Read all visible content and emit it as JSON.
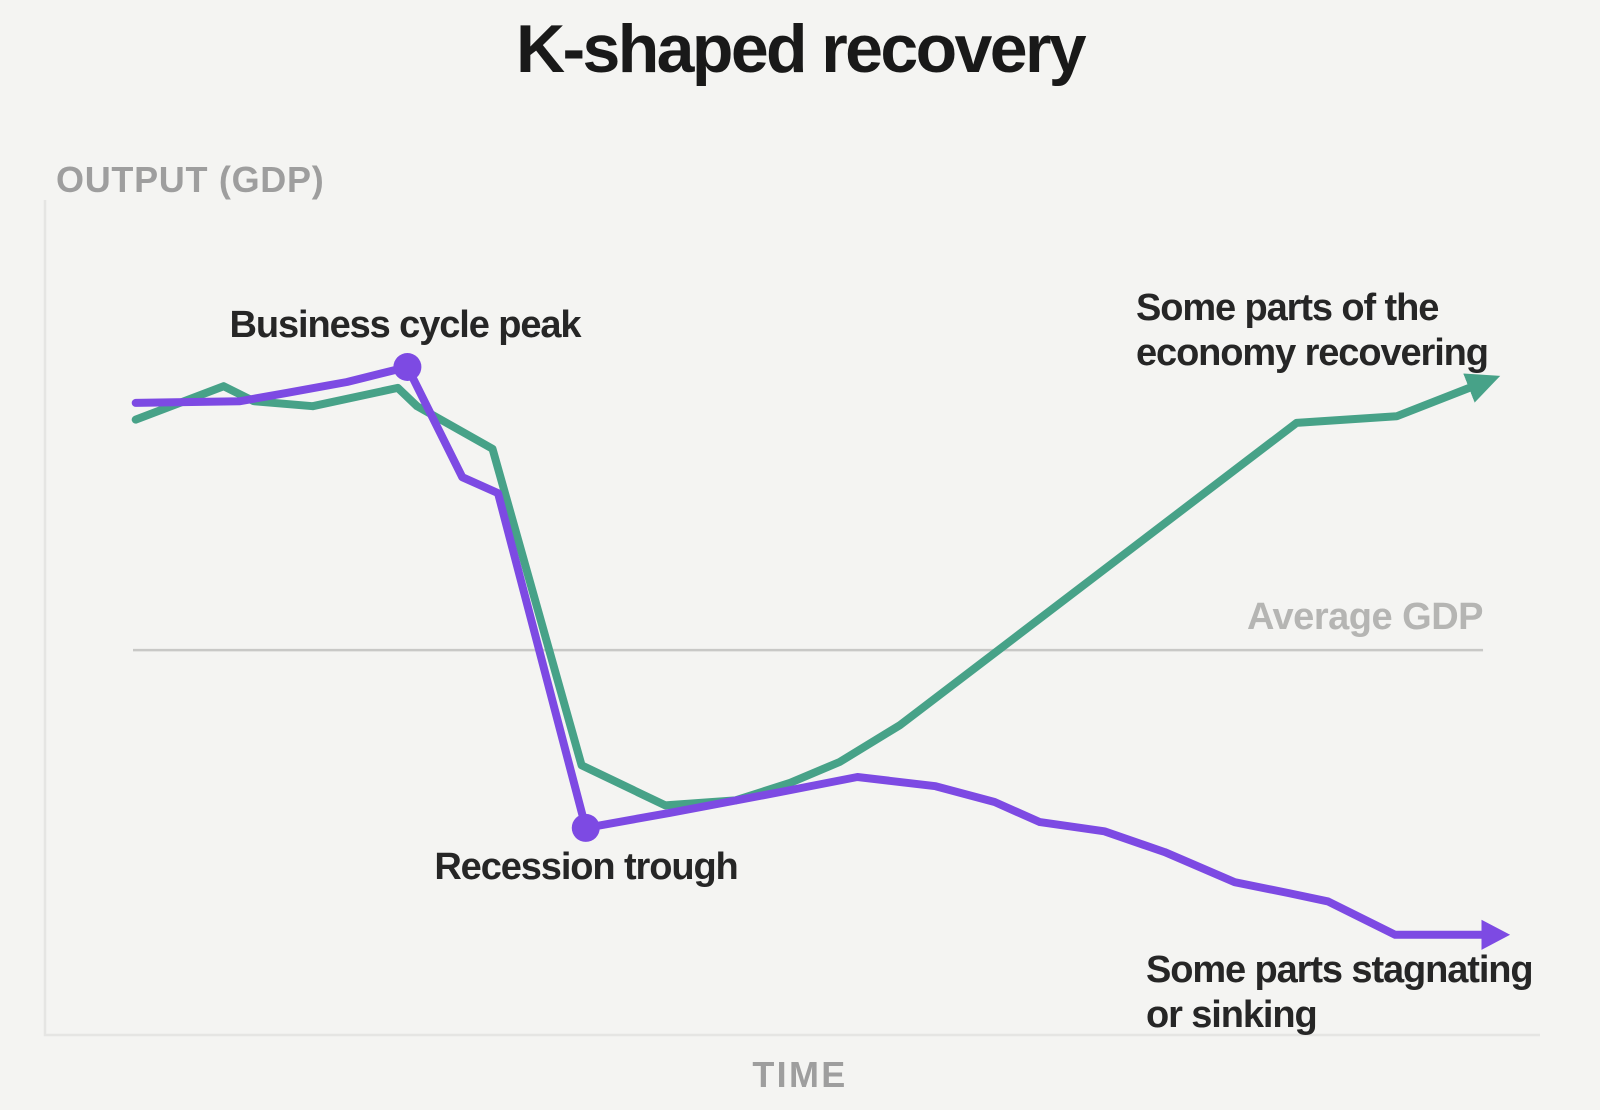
{
  "title": "K-shaped recovery",
  "axes": {
    "y_label": "OUTPUT (GDP)",
    "x_label": "TIME"
  },
  "annotations": {
    "peak": "Business cycle peak",
    "trough": "Recession trough",
    "recovering": "Some parts of the\neconomy recovering",
    "stagnating": "Some parts stagnating\nor sinking",
    "average_gdp": "Average GDP"
  },
  "colors": {
    "purple": "#7d4ae3",
    "green": "#47a288",
    "average_line": "#c8c8c6",
    "axis": "#e5e5e3",
    "background": "#f4f4f2"
  },
  "chart_data": {
    "type": "line",
    "title": "K-shaped recovery",
    "xlabel": "TIME",
    "ylabel": "OUTPUT (GDP)",
    "x_range": [
      0,
      100
    ],
    "y_range": [
      0,
      100
    ],
    "grid": false,
    "average_gdp_level": 46.1,
    "average_gdp_span": [
      0,
      98.4
    ],
    "series": [
      {
        "name": "Some parts of the economy recovering",
        "color_key": "green",
        "arrow_end": true,
        "points": [
          [
            0.2,
            73.7
          ],
          [
            6.6,
            77.7
          ],
          [
            8.8,
            75.9
          ],
          [
            13.1,
            75.3
          ],
          [
            19.3,
            77.5
          ],
          [
            20.7,
            75.3
          ],
          [
            26.2,
            70.2
          ],
          [
            32.7,
            32.3
          ],
          [
            38.8,
            27.5
          ],
          [
            43.9,
            28.1
          ],
          [
            47.9,
            30.2
          ],
          [
            51.5,
            32.7
          ],
          [
            55.9,
            37.1
          ],
          [
            84.8,
            73.3
          ],
          [
            92.1,
            74.1
          ],
          [
            97.4,
            77.5
          ]
        ]
      },
      {
        "name": "Some parts stagnating or sinking",
        "color_key": "purple",
        "arrow_end": true,
        "points": [
          [
            0.2,
            75.7
          ],
          [
            7.8,
            75.9
          ],
          [
            11.2,
            76.9
          ],
          [
            15.6,
            78.2
          ],
          [
            20.0,
            80.0
          ],
          [
            24.0,
            66.8
          ],
          [
            26.6,
            64.9
          ],
          [
            33.0,
            24.8
          ],
          [
            39.1,
            26.6
          ],
          [
            47.2,
            29.1
          ],
          [
            52.8,
            30.9
          ],
          [
            58.5,
            29.8
          ],
          [
            62.8,
            27.9
          ],
          [
            66.1,
            25.5
          ],
          [
            70.8,
            24.4
          ],
          [
            75.2,
            21.9
          ],
          [
            80.3,
            18.3
          ],
          [
            84.2,
            17.0
          ],
          [
            87.1,
            16.0
          ],
          [
            92.0,
            12.0
          ],
          [
            98.3,
            12.0
          ]
        ],
        "point_markers": [
          {
            "x": 20.0,
            "y": 80.0,
            "label": "Business cycle peak"
          },
          {
            "x": 33.0,
            "y": 24.8,
            "label": "Recession trough"
          }
        ]
      }
    ]
  }
}
